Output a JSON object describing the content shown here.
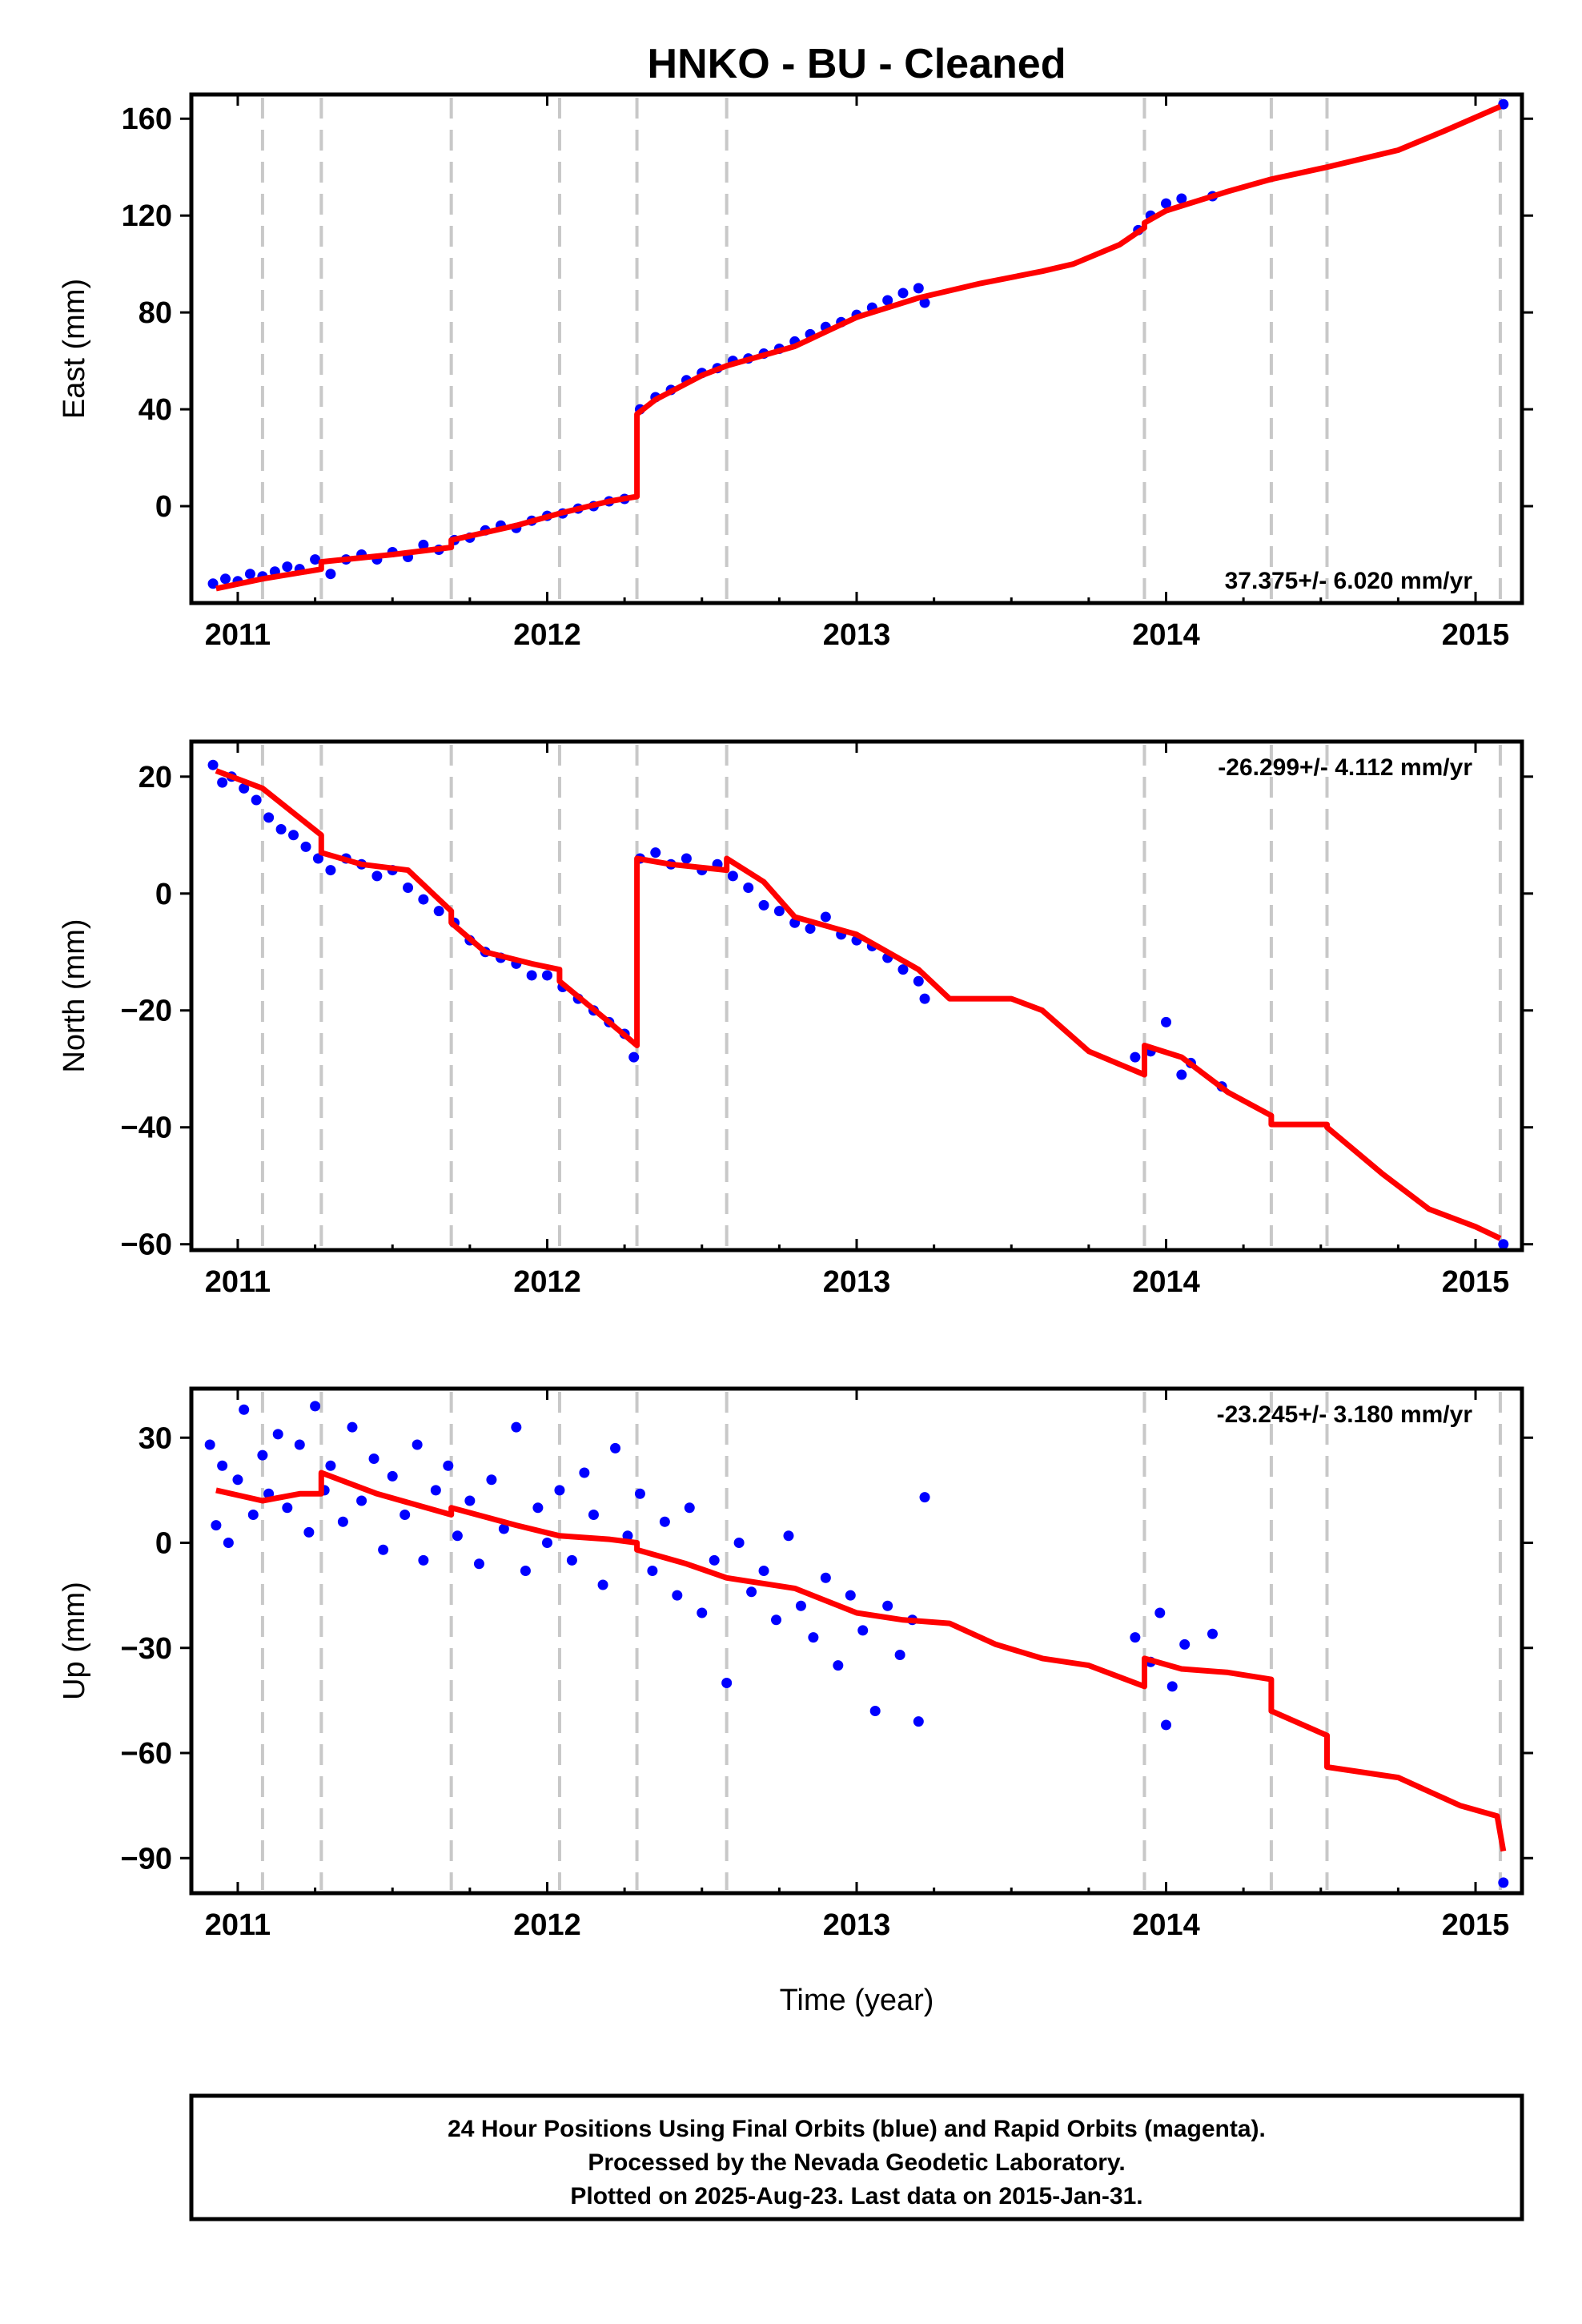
{
  "title": "HNKO  - BU - Cleaned",
  "xlabel": "Time (year)",
  "footer": {
    "line1": "24 Hour Positions Using Final Orbits (blue) and Rapid Orbits (magenta).",
    "line2": "Processed by the Nevada Geodetic Laboratory.",
    "line3": "Plotted on 2025-Aug-23. Last data on 2015-Jan-31."
  },
  "colors": {
    "data": "#0000ff",
    "fit": "#ff0000",
    "event_lines": "#c8c8c8"
  },
  "chart_data": [
    {
      "type": "scatter",
      "ylabel": "East (mm)",
      "rate": "37.375+/- 6.020 mm/yr",
      "rate_position": "bottom-right",
      "xlim": [
        2010.85,
        2015.15
      ],
      "ylim": [
        -40,
        170
      ],
      "xticks": [
        2011,
        2012,
        2013,
        2014,
        2015
      ],
      "yticks": [
        0,
        40,
        80,
        120,
        160
      ],
      "event_lines": [
        2011.08,
        2011.27,
        2011.69,
        2012.04,
        2012.29,
        2012.58,
        2013.93,
        2014.34,
        2014.52,
        2015.08
      ],
      "fit_line": [
        [
          2010.93,
          -34
        ],
        [
          2011.08,
          -30
        ],
        [
          2011.27,
          -26
        ],
        [
          2011.27,
          -23
        ],
        [
          2011.5,
          -20
        ],
        [
          2011.69,
          -17
        ],
        [
          2011.69,
          -14
        ],
        [
          2011.9,
          -8
        ],
        [
          2012.04,
          -3
        ],
        [
          2012.2,
          2
        ],
        [
          2012.29,
          4
        ],
        [
          2012.29,
          38
        ],
        [
          2012.35,
          44
        ],
        [
          2012.5,
          54
        ],
        [
          2012.58,
          58
        ],
        [
          2012.8,
          66
        ],
        [
          2013.0,
          78
        ],
        [
          2013.2,
          86
        ],
        [
          2013.4,
          92
        ],
        [
          2013.6,
          97
        ],
        [
          2013.7,
          100
        ],
        [
          2013.85,
          108
        ],
        [
          2013.93,
          115
        ],
        [
          2013.93,
          117
        ],
        [
          2014.0,
          122
        ],
        [
          2014.2,
          130
        ],
        [
          2014.34,
          135
        ],
        [
          2014.52,
          140
        ],
        [
          2014.75,
          147
        ],
        [
          2014.9,
          155
        ],
        [
          2015.08,
          165
        ]
      ],
      "points": [
        [
          2010.92,
          -32
        ],
        [
          2010.96,
          -30
        ],
        [
          2011.0,
          -31
        ],
        [
          2011.04,
          -28
        ],
        [
          2011.08,
          -29
        ],
        [
          2011.12,
          -27
        ],
        [
          2011.16,
          -25
        ],
        [
          2011.2,
          -26
        ],
        [
          2011.25,
          -22
        ],
        [
          2011.3,
          -28
        ],
        [
          2011.35,
          -22
        ],
        [
          2011.4,
          -20
        ],
        [
          2011.45,
          -22
        ],
        [
          2011.5,
          -19
        ],
        [
          2011.55,
          -21
        ],
        [
          2011.6,
          -16
        ],
        [
          2011.65,
          -18
        ],
        [
          2011.7,
          -14
        ],
        [
          2011.75,
          -13
        ],
        [
          2011.8,
          -10
        ],
        [
          2011.85,
          -8
        ],
        [
          2011.9,
          -9
        ],
        [
          2011.95,
          -6
        ],
        [
          2012.0,
          -4
        ],
        [
          2012.05,
          -3
        ],
        [
          2012.1,
          -1
        ],
        [
          2012.15,
          0
        ],
        [
          2012.2,
          2
        ],
        [
          2012.25,
          3
        ],
        [
          2012.3,
          40
        ],
        [
          2012.35,
          45
        ],
        [
          2012.4,
          48
        ],
        [
          2012.45,
          52
        ],
        [
          2012.5,
          55
        ],
        [
          2012.55,
          57
        ],
        [
          2012.6,
          60
        ],
        [
          2012.65,
          61
        ],
        [
          2012.7,
          63
        ],
        [
          2012.75,
          65
        ],
        [
          2012.8,
          68
        ],
        [
          2012.85,
          71
        ],
        [
          2012.9,
          74
        ],
        [
          2012.95,
          76
        ],
        [
          2013.0,
          79
        ],
        [
          2013.05,
          82
        ],
        [
          2013.1,
          85
        ],
        [
          2013.15,
          88
        ],
        [
          2013.2,
          90
        ],
        [
          2013.22,
          84
        ],
        [
          2013.91,
          114
        ],
        [
          2013.95,
          120
        ],
        [
          2014.0,
          125
        ],
        [
          2014.05,
          127
        ],
        [
          2014.15,
          128
        ],
        [
          2015.09,
          166
        ]
      ]
    },
    {
      "type": "scatter",
      "ylabel": "North (mm)",
      "rate": "-26.299+/- 4.112 mm/yr",
      "rate_position": "top-right",
      "xlim": [
        2010.85,
        2015.15
      ],
      "ylim": [
        -61,
        26
      ],
      "xticks": [
        2011,
        2012,
        2013,
        2014,
        2015
      ],
      "yticks": [
        -60,
        -40,
        -20,
        0,
        20
      ],
      "event_lines": [
        2011.08,
        2011.27,
        2011.69,
        2012.04,
        2012.29,
        2012.58,
        2013.93,
        2014.34,
        2014.52,
        2015.08
      ],
      "fit_line": [
        [
          2010.93,
          21
        ],
        [
          2011.08,
          18
        ],
        [
          2011.27,
          10
        ],
        [
          2011.27,
          7
        ],
        [
          2011.4,
          5
        ],
        [
          2011.55,
          4
        ],
        [
          2011.69,
          -3
        ],
        [
          2011.69,
          -5
        ],
        [
          2011.8,
          -10
        ],
        [
          2011.95,
          -12
        ],
        [
          2012.04,
          -13
        ],
        [
          2012.04,
          -15
        ],
        [
          2012.2,
          -22
        ],
        [
          2012.29,
          -26
        ],
        [
          2012.29,
          6
        ],
        [
          2012.4,
          5
        ],
        [
          2012.58,
          4
        ],
        [
          2012.58,
          6
        ],
        [
          2012.7,
          2
        ],
        [
          2012.8,
          -4
        ],
        [
          2013.0,
          -7
        ],
        [
          2013.2,
          -13
        ],
        [
          2013.3,
          -18
        ],
        [
          2013.5,
          -18
        ],
        [
          2013.6,
          -20
        ],
        [
          2013.75,
          -27
        ],
        [
          2013.93,
          -31
        ],
        [
          2013.93,
          -26
        ],
        [
          2014.05,
          -28
        ],
        [
          2014.2,
          -34
        ],
        [
          2014.34,
          -38
        ],
        [
          2014.34,
          -39.5
        ],
        [
          2014.52,
          -39.5
        ],
        [
          2014.52,
          -40
        ],
        [
          2014.7,
          -48
        ],
        [
          2014.85,
          -54
        ],
        [
          2015.0,
          -57
        ],
        [
          2015.08,
          -59
        ]
      ],
      "points": [
        [
          2010.92,
          22
        ],
        [
          2010.95,
          19
        ],
        [
          2010.98,
          20
        ],
        [
          2011.02,
          18
        ],
        [
          2011.06,
          16
        ],
        [
          2011.1,
          13
        ],
        [
          2011.14,
          11
        ],
        [
          2011.18,
          10
        ],
        [
          2011.22,
          8
        ],
        [
          2011.26,
          6
        ],
        [
          2011.3,
          4
        ],
        [
          2011.35,
          6
        ],
        [
          2011.4,
          5
        ],
        [
          2011.45,
          3
        ],
        [
          2011.5,
          4
        ],
        [
          2011.55,
          1
        ],
        [
          2011.6,
          -1
        ],
        [
          2011.65,
          -3
        ],
        [
          2011.7,
          -5
        ],
        [
          2011.75,
          -8
        ],
        [
          2011.8,
          -10
        ],
        [
          2011.85,
          -11
        ],
        [
          2011.9,
          -12
        ],
        [
          2011.95,
          -14
        ],
        [
          2012.0,
          -14
        ],
        [
          2012.05,
          -16
        ],
        [
          2012.1,
          -18
        ],
        [
          2012.15,
          -20
        ],
        [
          2012.2,
          -22
        ],
        [
          2012.25,
          -24
        ],
        [
          2012.28,
          -28
        ],
        [
          2012.3,
          6
        ],
        [
          2012.35,
          7
        ],
        [
          2012.4,
          5
        ],
        [
          2012.45,
          6
        ],
        [
          2012.5,
          4
        ],
        [
          2012.55,
          5
        ],
        [
          2012.6,
          3
        ],
        [
          2012.65,
          1
        ],
        [
          2012.7,
          -2
        ],
        [
          2012.75,
          -3
        ],
        [
          2012.8,
          -5
        ],
        [
          2012.85,
          -6
        ],
        [
          2012.9,
          -4
        ],
        [
          2012.95,
          -7
        ],
        [
          2013.0,
          -8
        ],
        [
          2013.05,
          -9
        ],
        [
          2013.1,
          -11
        ],
        [
          2013.15,
          -13
        ],
        [
          2013.2,
          -15
        ],
        [
          2013.22,
          -18
        ],
        [
          2013.9,
          -28
        ],
        [
          2013.95,
          -27
        ],
        [
          2014.0,
          -22
        ],
        [
          2014.05,
          -31
        ],
        [
          2014.08,
          -29
        ],
        [
          2014.18,
          -33
        ],
        [
          2015.09,
          -60
        ]
      ]
    },
    {
      "type": "scatter",
      "ylabel": "Up (mm)",
      "rate": "-23.245+/- 3.180 mm/yr",
      "rate_position": "top-right",
      "xlim": [
        2010.85,
        2015.15
      ],
      "ylim": [
        -100,
        44
      ],
      "xticks": [
        2011,
        2012,
        2013,
        2014,
        2015
      ],
      "yticks": [
        -90,
        -60,
        -30,
        0,
        30
      ],
      "event_lines": [
        2011.08,
        2011.27,
        2011.69,
        2012.04,
        2012.29,
        2012.58,
        2013.93,
        2014.34,
        2014.52,
        2015.08
      ],
      "fit_line": [
        [
          2010.93,
          15
        ],
        [
          2011.08,
          12
        ],
        [
          2011.2,
          14
        ],
        [
          2011.27,
          14
        ],
        [
          2011.27,
          20
        ],
        [
          2011.45,
          14
        ],
        [
          2011.69,
          8
        ],
        [
          2011.69,
          10
        ],
        [
          2011.9,
          5
        ],
        [
          2012.04,
          2
        ],
        [
          2012.2,
          1
        ],
        [
          2012.29,
          0
        ],
        [
          2012.29,
          -2
        ],
        [
          2012.45,
          -6
        ],
        [
          2012.58,
          -10
        ],
        [
          2012.8,
          -13
        ],
        [
          2013.0,
          -20
        ],
        [
          2013.15,
          -22
        ],
        [
          2013.3,
          -23
        ],
        [
          2013.45,
          -29
        ],
        [
          2013.6,
          -33
        ],
        [
          2013.75,
          -35
        ],
        [
          2013.93,
          -41
        ],
        [
          2013.93,
          -33
        ],
        [
          2014.05,
          -36
        ],
        [
          2014.2,
          -37
        ],
        [
          2014.34,
          -39
        ],
        [
          2014.34,
          -48
        ],
        [
          2014.52,
          -55
        ],
        [
          2014.52,
          -64
        ],
        [
          2014.75,
          -67
        ],
        [
          2014.95,
          -75
        ],
        [
          2015.07,
          -78
        ],
        [
          2015.09,
          -88
        ]
      ],
      "points": [
        [
          2010.91,
          28
        ],
        [
          2010.93,
          5
        ],
        [
          2010.95,
          22
        ],
        [
          2010.97,
          0
        ],
        [
          2011.0,
          18
        ],
        [
          2011.02,
          38
        ],
        [
          2011.05,
          8
        ],
        [
          2011.08,
          25
        ],
        [
          2011.1,
          14
        ],
        [
          2011.13,
          31
        ],
        [
          2011.16,
          10
        ],
        [
          2011.2,
          28
        ],
        [
          2011.23,
          3
        ],
        [
          2011.25,
          39
        ],
        [
          2011.28,
          15
        ],
        [
          2011.3,
          22
        ],
        [
          2011.34,
          6
        ],
        [
          2011.37,
          33
        ],
        [
          2011.4,
          12
        ],
        [
          2011.44,
          24
        ],
        [
          2011.47,
          -2
        ],
        [
          2011.5,
          19
        ],
        [
          2011.54,
          8
        ],
        [
          2011.58,
          28
        ],
        [
          2011.6,
          -5
        ],
        [
          2011.64,
          15
        ],
        [
          2011.68,
          22
        ],
        [
          2011.71,
          2
        ],
        [
          2011.75,
          12
        ],
        [
          2011.78,
          -6
        ],
        [
          2011.82,
          18
        ],
        [
          2011.86,
          4
        ],
        [
          2011.9,
          33
        ],
        [
          2011.93,
          -8
        ],
        [
          2011.97,
          10
        ],
        [
          2012.0,
          0
        ],
        [
          2012.04,
          15
        ],
        [
          2012.08,
          -5
        ],
        [
          2012.12,
          20
        ],
        [
          2012.15,
          8
        ],
        [
          2012.18,
          -12
        ],
        [
          2012.22,
          27
        ],
        [
          2012.26,
          2
        ],
        [
          2012.3,
          14
        ],
        [
          2012.34,
          -8
        ],
        [
          2012.38,
          6
        ],
        [
          2012.42,
          -15
        ],
        [
          2012.46,
          10
        ],
        [
          2012.5,
          -20
        ],
        [
          2012.54,
          -5
        ],
        [
          2012.58,
          -40
        ],
        [
          2012.62,
          0
        ],
        [
          2012.66,
          -14
        ],
        [
          2012.7,
          -8
        ],
        [
          2012.74,
          -22
        ],
        [
          2012.78,
          2
        ],
        [
          2012.82,
          -18
        ],
        [
          2012.86,
          -27
        ],
        [
          2012.9,
          -10
        ],
        [
          2012.94,
          -35
        ],
        [
          2012.98,
          -15
        ],
        [
          2013.02,
          -25
        ],
        [
          2013.06,
          -48
        ],
        [
          2013.1,
          -18
        ],
        [
          2013.14,
          -32
        ],
        [
          2013.18,
          -22
        ],
        [
          2013.2,
          -51
        ],
        [
          2013.22,
          13
        ],
        [
          2013.9,
          -27
        ],
        [
          2013.95,
          -34
        ],
        [
          2013.98,
          -20
        ],
        [
          2014.0,
          -52
        ],
        [
          2014.02,
          -41
        ],
        [
          2014.06,
          -29
        ],
        [
          2014.15,
          -26
        ],
        [
          2015.09,
          -97
        ]
      ]
    }
  ]
}
